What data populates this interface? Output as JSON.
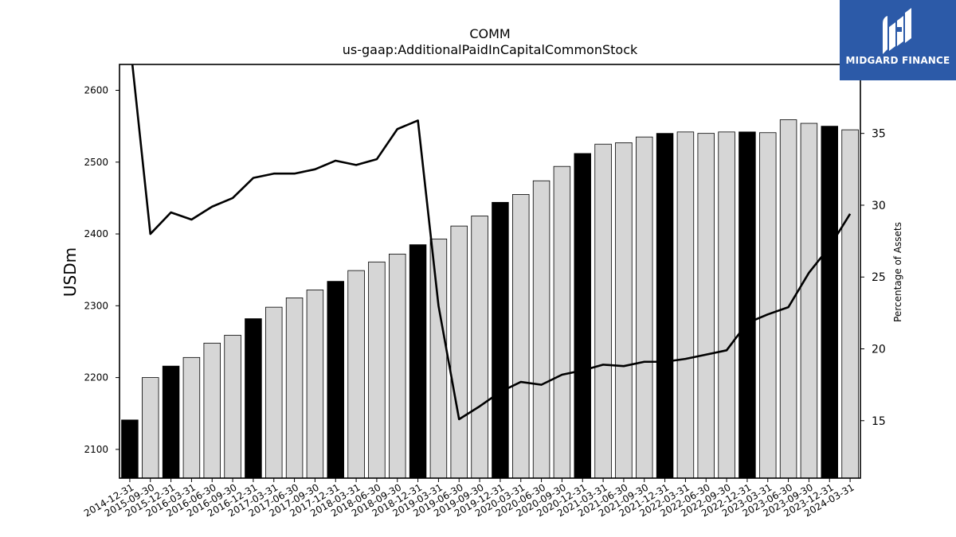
{
  "chart_data": {
    "type": "bar",
    "title": "COMM",
    "subtitle": "us-gaap:AdditionalPaidInCapitalCommonStock",
    "ylabel": "USDm",
    "y2label": "Percentage of Assets",
    "ylim": [
      2060,
      2636
    ],
    "y2lim": [
      11,
      39.8
    ],
    "yticks": [
      2100,
      2200,
      2300,
      2400,
      2500,
      2600
    ],
    "y2ticks": [
      15,
      20,
      25,
      30,
      35
    ],
    "categories": [
      "2014-12-31",
      "2015-09-30",
      "2015-12-31",
      "2016-03-31",
      "2016-06-30",
      "2016-09-30",
      "2016-12-31",
      "2017-03-31",
      "2017-06-30",
      "2017-09-30",
      "2017-12-31",
      "2018-03-31",
      "2018-06-30",
      "2018-09-30",
      "2018-12-31",
      "2019-03-31",
      "2019-06-30",
      "2019-09-30",
      "2019-12-31",
      "2020-03-31",
      "2020-06-30",
      "2020-09-30",
      "2020-12-31",
      "2021-03-31",
      "2021-06-30",
      "2021-09-30",
      "2021-12-31",
      "2022-03-31",
      "2022-06-30",
      "2022-09-30",
      "2022-12-31",
      "2023-03-31",
      "2023-06-30",
      "2023-09-30",
      "2023-12-31",
      "2024-03-31"
    ],
    "series": [
      {
        "type": "bar",
        "values": [
          2141,
          2200,
          2216,
          2228,
          2248,
          2259,
          2282,
          2298,
          2311,
          2322,
          2334,
          2349,
          2361,
          2372,
          2385,
          2393,
          2411,
          2425,
          2444,
          2455,
          2474,
          2494,
          2512,
          2525,
          2527,
          2535,
          2540,
          2542,
          2540,
          2542,
          2542,
          2541,
          2559,
          2554,
          2550,
          2545
        ],
        "highlight": [
          true,
          false,
          true,
          false,
          false,
          false,
          true,
          false,
          false,
          false,
          true,
          false,
          false,
          false,
          true,
          false,
          false,
          false,
          true,
          false,
          false,
          false,
          true,
          false,
          false,
          false,
          true,
          false,
          false,
          false,
          true,
          false,
          false,
          false,
          true,
          false
        ],
        "colors": {
          "highlight": "#000000",
          "normal": "#d6d6d6",
          "edge": "#000000"
        }
      },
      {
        "type": "line",
        "axis": "right",
        "values": [
          41.5,
          28.0,
          29.5,
          29.0,
          29.9,
          30.5,
          31.9,
          32.2,
          32.2,
          32.5,
          33.1,
          32.8,
          33.2,
          35.3,
          35.9,
          23.0,
          15.1,
          16.0,
          17.0,
          17.7,
          17.5,
          18.2,
          18.5,
          18.9,
          18.8,
          19.1,
          19.1,
          19.3,
          19.6,
          19.9,
          21.8,
          22.4,
          22.9,
          25.3,
          27.1,
          29.4
        ],
        "color": "#000000"
      }
    ]
  },
  "logo": {
    "text": "MIDGARD FINANCE",
    "icon": "midgard-logo-icon",
    "background": "#2c5aa8"
  }
}
